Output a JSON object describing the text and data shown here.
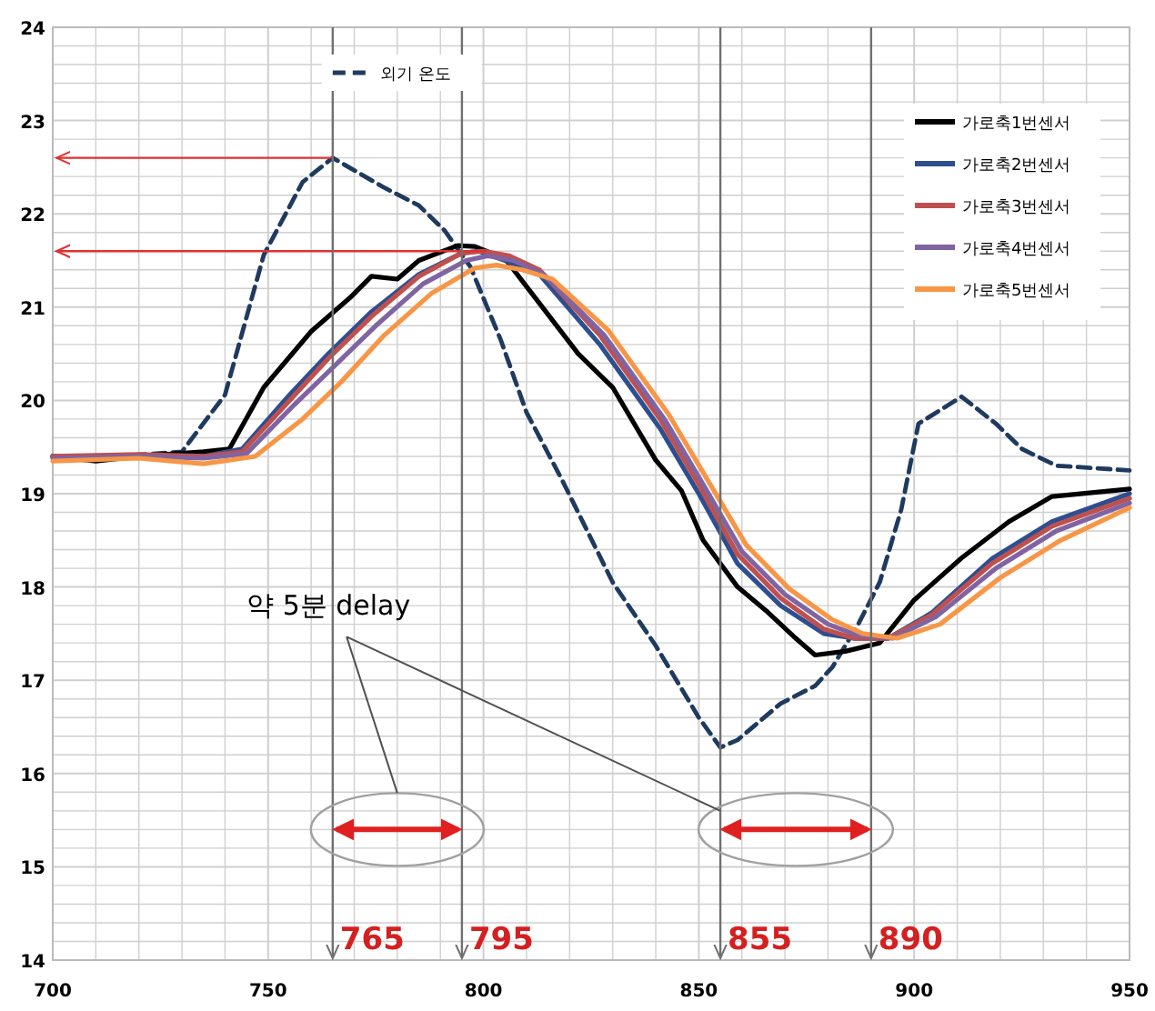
{
  "chart_data": {
    "type": "line",
    "xlim": [
      700,
      950
    ],
    "ylim": [
      14,
      24
    ],
    "xticks": [
      700,
      {
        "value": 710,
        "label": null
      },
      {
        "value": 720,
        "label": null
      },
      {
        "value": 730,
        "label": null
      },
      {
        "value": 740,
        "label": null
      },
      750,
      {
        "value": 760,
        "label": null
      },
      {
        "value": 770,
        "label": null
      },
      {
        "value": 780,
        "label": null
      },
      {
        "value": 790,
        "label": null
      },
      800,
      {
        "value": 810,
        "label": null
      },
      {
        "value": 820,
        "label": null
      },
      {
        "value": 830,
        "label": null
      },
      {
        "value": 840,
        "label": null
      },
      850,
      {
        "value": 860,
        "label": null
      },
      {
        "value": 870,
        "label": null
      },
      {
        "value": 880,
        "label": null
      },
      {
        "value": 890,
        "label": null
      },
      900,
      {
        "value": 910,
        "label": null
      },
      {
        "value": 920,
        "label": null
      },
      {
        "value": 930,
        "label": null
      },
      {
        "value": 940,
        "label": null
      },
      950
    ],
    "yticks": [
      14,
      {
        "value": 14.2,
        "label": null
      },
      {
        "value": 14.4,
        "label": null
      },
      {
        "value": 14.6,
        "label": null
      },
      {
        "value": 14.8,
        "label": null
      },
      15,
      {
        "value": 15.2,
        "label": null
      },
      {
        "value": 15.4,
        "label": null
      },
      {
        "value": 15.6,
        "label": null
      },
      {
        "value": 15.8,
        "label": null
      },
      16,
      {
        "value": 16.2,
        "label": null
      },
      {
        "value": 16.4,
        "label": null
      },
      {
        "value": 16.6,
        "label": null
      },
      {
        "value": 16.8,
        "label": null
      },
      17,
      {
        "value": 17.2,
        "label": null
      },
      {
        "value": 17.4,
        "label": null
      },
      {
        "value": 17.6,
        "label": null
      },
      {
        "value": 17.8,
        "label": null
      },
      18,
      {
        "value": 18.2,
        "label": null
      },
      {
        "value": 18.4,
        "label": null
      },
      {
        "value": 18.6,
        "label": null
      },
      {
        "value": 18.8,
        "label": null
      },
      19,
      {
        "value": 19.2,
        "label": null
      },
      {
        "value": 19.4,
        "label": null
      },
      {
        "value": 19.6,
        "label": null
      },
      {
        "value": 19.8,
        "label": null
      },
      20,
      {
        "value": 20.2,
        "label": null
      },
      {
        "value": 20.4,
        "label": null
      },
      {
        "value": 20.6,
        "label": null
      },
      {
        "value": 20.8,
        "label": null
      },
      21,
      {
        "value": 21.2,
        "label": null
      },
      {
        "value": 21.4,
        "label": null
      },
      {
        "value": 21.6,
        "label": null
      },
      {
        "value": 21.8,
        "label": null
      },
      22,
      {
        "value": 22.2,
        "label": null
      },
      {
        "value": 22.4,
        "label": null
      },
      {
        "value": 22.6,
        "label": null
      },
      {
        "value": 22.8,
        "label": null
      },
      23,
      {
        "value": 23.2,
        "label": null
      },
      {
        "value": 23.4,
        "label": null
      },
      {
        "value": 23.6,
        "label": null
      },
      {
        "value": 23.8,
        "label": null
      },
      24
    ],
    "grid": true,
    "legend": "top right",
    "marker": "none",
    "series": [
      {
        "name": "외기 온도",
        "color": "#1f3a5f",
        "line_style": "dashed",
        "x": [
          700,
          715,
          730,
          740,
          749,
          758,
          765,
          777,
          785,
          791,
          797,
          804,
          810,
          818,
          830,
          840,
          850,
          855,
          859,
          869,
          877,
          881,
          887,
          892,
          897,
          901,
          911,
          919,
          925,
          933,
          950
        ],
        "values": [
          19.4,
          19.4,
          19.45,
          20.06,
          21.56,
          22.34,
          22.6,
          22.28,
          22.09,
          21.82,
          21.43,
          20.65,
          19.87,
          19.17,
          18.05,
          17.37,
          16.6,
          16.28,
          16.36,
          16.75,
          16.94,
          17.14,
          17.6,
          18.05,
          18.83,
          19.75,
          20.04,
          19.75,
          19.48,
          19.3,
          19.25
        ]
      },
      {
        "name": "가로축1번센서",
        "color": "#000000",
        "line_style": "solid",
        "x": [
          700,
          710,
          720,
          735,
          741,
          749,
          760,
          769,
          774,
          780,
          785,
          794,
          798,
          805,
          813,
          822,
          830,
          840,
          846,
          851,
          859,
          866,
          872,
          877,
          884,
          892,
          900,
          911,
          922,
          932,
          950
        ],
        "values": [
          19.4,
          19.35,
          19.4,
          19.45,
          19.48,
          20.14,
          20.74,
          21.1,
          21.33,
          21.3,
          21.5,
          21.66,
          21.65,
          21.52,
          21.04,
          20.5,
          20.14,
          19.36,
          19.03,
          18.5,
          18.0,
          17.73,
          17.47,
          17.27,
          17.31,
          17.4,
          17.86,
          18.31,
          18.7,
          18.97,
          19.05
        ]
      },
      {
        "name": "가로축2번센서",
        "color": "#2e4f8f",
        "line_style": "solid",
        "x": [
          700,
          720,
          735,
          744,
          755,
          764,
          774,
          785,
          795,
          799,
          805,
          813,
          827,
          841,
          850,
          859,
          869,
          879,
          886,
          894,
          904,
          918,
          932,
          950
        ],
        "values": [
          19.4,
          19.4,
          19.4,
          19.48,
          20.06,
          20.5,
          20.95,
          21.35,
          21.58,
          21.6,
          21.5,
          21.35,
          20.6,
          19.7,
          19.0,
          18.25,
          17.8,
          17.5,
          17.45,
          17.45,
          17.72,
          18.3,
          18.7,
          19.0
        ]
      },
      {
        "name": "가로축3번센서",
        "color": "#c0504d",
        "line_style": "solid",
        "x": [
          700,
          720,
          735,
          744,
          755,
          764,
          774,
          785,
          795,
          800,
          806,
          813,
          827,
          841,
          850,
          859,
          869,
          879,
          886,
          894,
          904,
          918,
          932,
          950
        ],
        "values": [
          19.4,
          19.42,
          19.4,
          19.45,
          20.0,
          20.45,
          20.9,
          21.33,
          21.58,
          21.6,
          21.55,
          21.4,
          20.7,
          19.8,
          19.1,
          18.35,
          17.88,
          17.55,
          17.45,
          17.45,
          17.7,
          18.25,
          18.65,
          18.95
        ]
      },
      {
        "name": "가로축4번센서",
        "color": "#8064a2",
        "line_style": "solid",
        "x": [
          700,
          720,
          735,
          745,
          756,
          765,
          775,
          786,
          796,
          801,
          807,
          814,
          828,
          842,
          851,
          860,
          870,
          880,
          887,
          895,
          905,
          919,
          933,
          950
        ],
        "values": [
          19.38,
          19.4,
          19.38,
          19.43,
          19.95,
          20.35,
          20.8,
          21.25,
          21.5,
          21.55,
          21.5,
          21.35,
          20.7,
          19.8,
          19.1,
          18.38,
          17.92,
          17.6,
          17.48,
          17.45,
          17.68,
          18.2,
          18.6,
          18.9
        ]
      },
      {
        "name": "가로축5번센서",
        "color": "#f79646",
        "line_style": "solid",
        "x": [
          700,
          720,
          735,
          747,
          758,
          767,
          777,
          788,
          798,
          803,
          809,
          816,
          829,
          843,
          852,
          861,
          871,
          881,
          888,
          896,
          906,
          920,
          934,
          950
        ],
        "values": [
          19.35,
          19.38,
          19.32,
          19.4,
          19.8,
          20.2,
          20.7,
          21.15,
          21.42,
          21.45,
          21.4,
          21.3,
          20.75,
          19.85,
          19.15,
          18.45,
          17.98,
          17.65,
          17.5,
          17.45,
          17.6,
          18.1,
          18.5,
          18.85
        ]
      }
    ],
    "ref_lines": [
      {
        "axis": "y",
        "value": 22.6,
        "color": "#e03030"
      },
      {
        "axis": "y",
        "value": 21.6,
        "color": "#e03030"
      },
      {
        "axis": "x",
        "value": 765,
        "label": "765",
        "color": "#707070"
      },
      {
        "axis": "x",
        "value": 795,
        "label": "795",
        "color": "#707070"
      },
      {
        "axis": "x",
        "value": 855,
        "label": "855",
        "color": "#707070"
      },
      {
        "axis": "x",
        "value": 890,
        "label": "890",
        "color": "#707070"
      }
    ],
    "annotations": [
      {
        "text": "약 5분 delay",
        "x": 855,
        "y": 15.6
      }
    ]
  }
}
